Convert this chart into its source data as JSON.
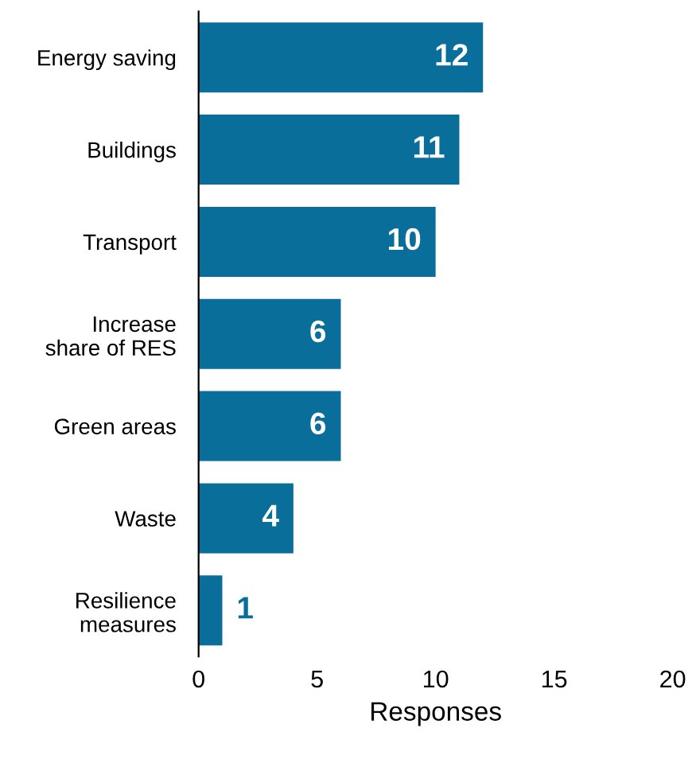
{
  "chart_data": {
    "type": "bar",
    "orientation": "horizontal",
    "xlabel": "Responses",
    "categories": [
      "Energy saving",
      "Buildings",
      "Transport",
      "Increase\nshare of RES",
      "Green areas",
      "Waste",
      "Resilience\nmeasures"
    ],
    "values": [
      12,
      11,
      10,
      6,
      6,
      4,
      1
    ],
    "color": "#0a6e9b",
    "xlim": [
      0,
      20
    ],
    "xticks": [
      0,
      5,
      10,
      15,
      20
    ],
    "grid": false,
    "data_labels": true
  }
}
